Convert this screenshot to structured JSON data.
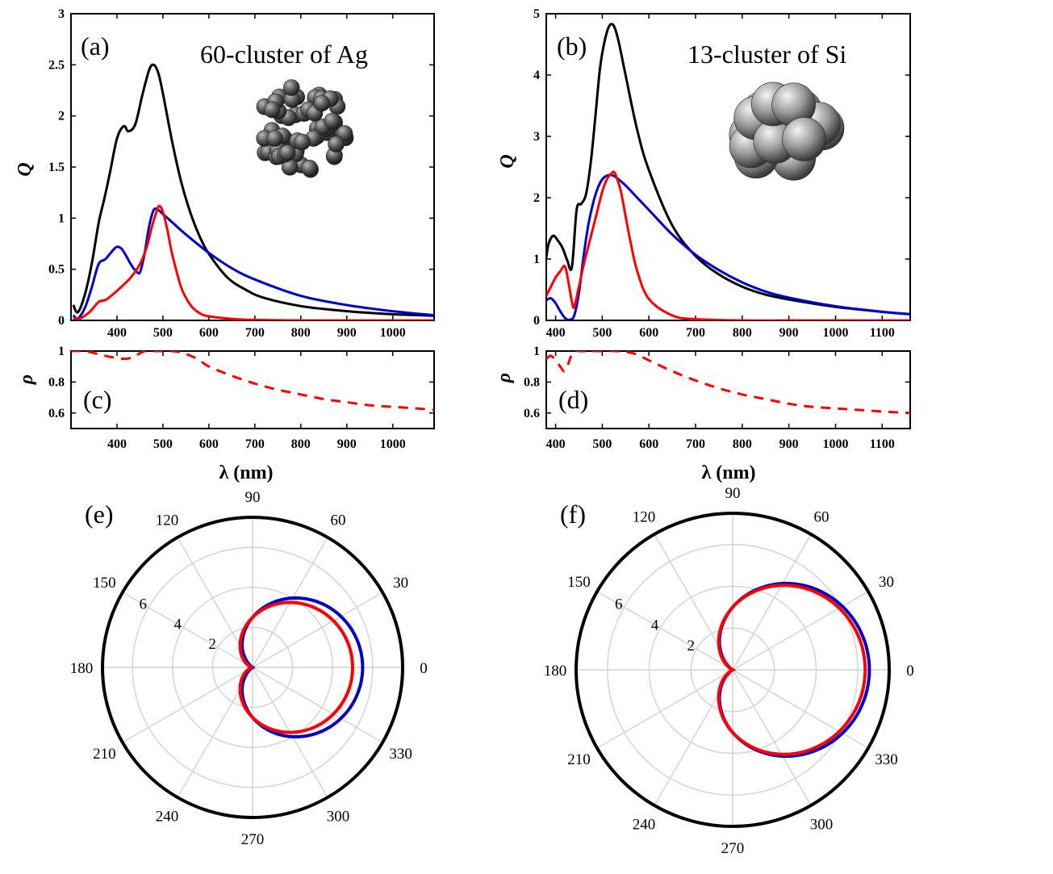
{
  "chart_data": [
    {
      "id": "a",
      "type": "line",
      "panel_label": "(a)",
      "title": "60-cluster of Ag",
      "ylabel": "Q",
      "xlim": [
        300,
        1090
      ],
      "ylim": [
        0,
        3
      ],
      "xticks": [
        "400",
        "500",
        "600",
        "700",
        "800",
        "900",
        "1000"
      ],
      "yticks": [
        "0",
        "0.5",
        "1",
        "1.5",
        "2",
        "2.5",
        "3"
      ],
      "inset": "sphere-cluster-60",
      "series": [
        {
          "name": "total",
          "color": "#000000",
          "x": [
            305,
            315,
            330,
            345,
            360,
            372,
            385,
            400,
            415,
            425,
            440,
            455,
            470,
            480,
            490,
            500,
            520,
            540,
            560,
            580,
            600,
            640,
            680,
            720,
            800,
            900,
            1000,
            1090
          ],
          "y": [
            0.15,
            0.08,
            0.25,
            0.55,
            0.95,
            1.18,
            1.45,
            1.78,
            1.9,
            1.85,
            1.92,
            2.2,
            2.45,
            2.5,
            2.42,
            2.22,
            1.75,
            1.35,
            1.05,
            0.82,
            0.65,
            0.42,
            0.3,
            0.22,
            0.14,
            0.09,
            0.06,
            0.045
          ]
        },
        {
          "name": "blue",
          "color": "#0000cc",
          "x": [
            305,
            315,
            330,
            345,
            360,
            375,
            390,
            400,
            410,
            420,
            430,
            440,
            450,
            460,
            470,
            480,
            490,
            500,
            520,
            550,
            600,
            650,
            700,
            800,
            900,
            1000,
            1090
          ],
          "y": [
            0.05,
            0.02,
            0.12,
            0.32,
            0.55,
            0.6,
            0.68,
            0.72,
            0.7,
            0.63,
            0.55,
            0.49,
            0.47,
            0.65,
            0.92,
            1.08,
            1.08,
            1.04,
            0.96,
            0.84,
            0.66,
            0.51,
            0.4,
            0.24,
            0.15,
            0.09,
            0.05
          ]
        },
        {
          "name": "red",
          "color": "#ff0000",
          "x": [
            305,
            320,
            340,
            360,
            375,
            390,
            410,
            430,
            450,
            465,
            475,
            485,
            492,
            500,
            510,
            520,
            540,
            560,
            580,
            600,
            650,
            700,
            800,
            900,
            1000,
            1090
          ],
          "y": [
            0.02,
            0.02,
            0.08,
            0.18,
            0.2,
            0.25,
            0.33,
            0.42,
            0.55,
            0.72,
            0.9,
            1.05,
            1.12,
            1.06,
            0.88,
            0.65,
            0.32,
            0.15,
            0.07,
            0.04,
            0.015,
            0.005,
            0,
            0,
            0,
            0
          ]
        }
      ]
    },
    {
      "id": "b",
      "type": "line",
      "panel_label": "(b)",
      "title": "13-cluster of Si",
      "ylabel": "Q",
      "xlim": [
        380,
        1160
      ],
      "ylim": [
        0,
        5
      ],
      "xticks": [
        "400",
        "500",
        "600",
        "700",
        "800",
        "900",
        "1000",
        "1100"
      ],
      "yticks": [
        "0",
        "1",
        "2",
        "3",
        "4",
        "5"
      ],
      "inset": "sphere-cluster-13",
      "series": [
        {
          "name": "total",
          "color": "#000000",
          "x": [
            380,
            385,
            395,
            405,
            415,
            425,
            435,
            445,
            455,
            465,
            475,
            485,
            495,
            505,
            515,
            525,
            535,
            550,
            575,
            600,
            650,
            700,
            750,
            800,
            850,
            900,
            1000,
            1100,
            1160
          ],
          "y": [
            1.02,
            1.25,
            1.38,
            1.3,
            1.18,
            0.98,
            0.87,
            1.8,
            1.9,
            2.05,
            2.55,
            3.3,
            4.1,
            4.55,
            4.8,
            4.8,
            4.55,
            4.0,
            3.1,
            2.45,
            1.55,
            1.05,
            0.75,
            0.55,
            0.42,
            0.34,
            0.22,
            0.14,
            0.1
          ]
        },
        {
          "name": "blue",
          "color": "#0000cc",
          "x": [
            380,
            390,
            400,
            410,
            420,
            430,
            440,
            450,
            460,
            470,
            480,
            490,
            500,
            510,
            520,
            530,
            550,
            575,
            600,
            650,
            700,
            750,
            800,
            850,
            900,
            1000,
            1100,
            1160
          ],
          "y": [
            0.33,
            0.36,
            0.28,
            0.15,
            0.04,
            0.01,
            0.08,
            0.45,
            1.05,
            1.55,
            1.9,
            2.15,
            2.3,
            2.36,
            2.37,
            2.33,
            2.2,
            2.0,
            1.8,
            1.4,
            1.07,
            0.82,
            0.62,
            0.47,
            0.37,
            0.23,
            0.14,
            0.1
          ]
        },
        {
          "name": "red",
          "color": "#ff0000",
          "x": [
            380,
            390,
            400,
            410,
            420,
            428,
            435,
            440,
            450,
            460,
            470,
            480,
            490,
            500,
            510,
            520,
            525,
            530,
            540,
            550,
            560,
            575,
            600,
            650,
            700,
            800,
            900,
            1000,
            1160
          ],
          "y": [
            0.4,
            0.55,
            0.7,
            0.8,
            0.88,
            0.6,
            0.3,
            0.22,
            0.55,
            0.9,
            1.2,
            1.5,
            1.8,
            2.1,
            2.3,
            2.4,
            2.42,
            2.35,
            2.1,
            1.7,
            1.3,
            0.8,
            0.35,
            0.08,
            0.02,
            0,
            0,
            0,
            0
          ]
        }
      ]
    },
    {
      "id": "c",
      "type": "line",
      "panel_label": "(c)",
      "ylabel": "ρ",
      "xlim": [
        300,
        1090
      ],
      "ylim": [
        0.5,
        1
      ],
      "xlabel": "λ (nm)",
      "xticks": [
        "400",
        "500",
        "600",
        "700",
        "800",
        "900",
        "1000"
      ],
      "yticks": [
        "0.6",
        "0.8",
        "1"
      ],
      "series": [
        {
          "name": "rho",
          "color": "#ff0000",
          "dashed": true,
          "x": [
            300,
            330,
            360,
            390,
            420,
            440,
            460,
            480,
            500,
            520,
            540,
            560,
            580,
            600,
            650,
            700,
            750,
            800,
            850,
            900,
            950,
            1000,
            1050,
            1090
          ],
          "y": [
            1.0,
            1.0,
            0.98,
            0.96,
            0.95,
            0.97,
            1.0,
            1.0,
            1.0,
            1.0,
            0.99,
            0.97,
            0.94,
            0.9,
            0.84,
            0.79,
            0.75,
            0.72,
            0.69,
            0.67,
            0.65,
            0.64,
            0.63,
            0.62
          ]
        }
      ]
    },
    {
      "id": "d",
      "type": "line",
      "panel_label": "(d)",
      "ylabel": "ρ",
      "xlim": [
        380,
        1160
      ],
      "ylim": [
        0.5,
        1
      ],
      "xlabel": "λ (nm)",
      "xticks": [
        "400",
        "500",
        "600",
        "700",
        "800",
        "900",
        "1000",
        "1100"
      ],
      "yticks": [
        "0.6",
        "0.8",
        "1"
      ],
      "series": [
        {
          "name": "rho",
          "color": "#ff0000",
          "dashed": true,
          "x": [
            380,
            390,
            400,
            410,
            418,
            425,
            432,
            440,
            450,
            470,
            500,
            530,
            560,
            580,
            600,
            650,
            700,
            750,
            800,
            850,
            900,
            950,
            1000,
            1050,
            1100,
            1160
          ],
          "y": [
            0.95,
            0.97,
            0.94,
            0.9,
            0.87,
            0.9,
            0.96,
            1.0,
            1.0,
            1.0,
            1.0,
            1.0,
            0.99,
            0.97,
            0.94,
            0.87,
            0.81,
            0.76,
            0.72,
            0.69,
            0.66,
            0.64,
            0.63,
            0.62,
            0.61,
            0.6
          ]
        }
      ]
    },
    {
      "id": "e",
      "type": "polar",
      "panel_label": "(e)",
      "rmax": 7.5,
      "rings": [
        2,
        4,
        6
      ],
      "ring_labels": [
        "2",
        "4",
        "6"
      ],
      "angle_labels": [
        "0",
        "30",
        "60",
        "90",
        "120",
        "150",
        "180",
        "210",
        "240",
        "270",
        "300",
        "330"
      ],
      "series": [
        {
          "name": "blue",
          "color": "#0000cc",
          "a": 2.5,
          "b": 3.0
        },
        {
          "name": "red",
          "color": "#ff0000",
          "a": 2.5,
          "b": 2.5
        }
      ]
    },
    {
      "id": "f",
      "type": "polar",
      "panel_label": "(f)",
      "rmax": 7.5,
      "rings": [
        2,
        4,
        6
      ],
      "ring_labels": [
        "2",
        "4",
        "6"
      ],
      "angle_labels": [
        "0",
        "30",
        "60",
        "90",
        "120",
        "150",
        "180",
        "210",
        "240",
        "270",
        "300",
        "330"
      ],
      "series": [
        {
          "name": "blue",
          "color": "#0000cc",
          "a": 3.0,
          "b": 3.55
        },
        {
          "name": "red",
          "color": "#ff0000",
          "a": 3.0,
          "b": 3.35
        }
      ]
    }
  ]
}
